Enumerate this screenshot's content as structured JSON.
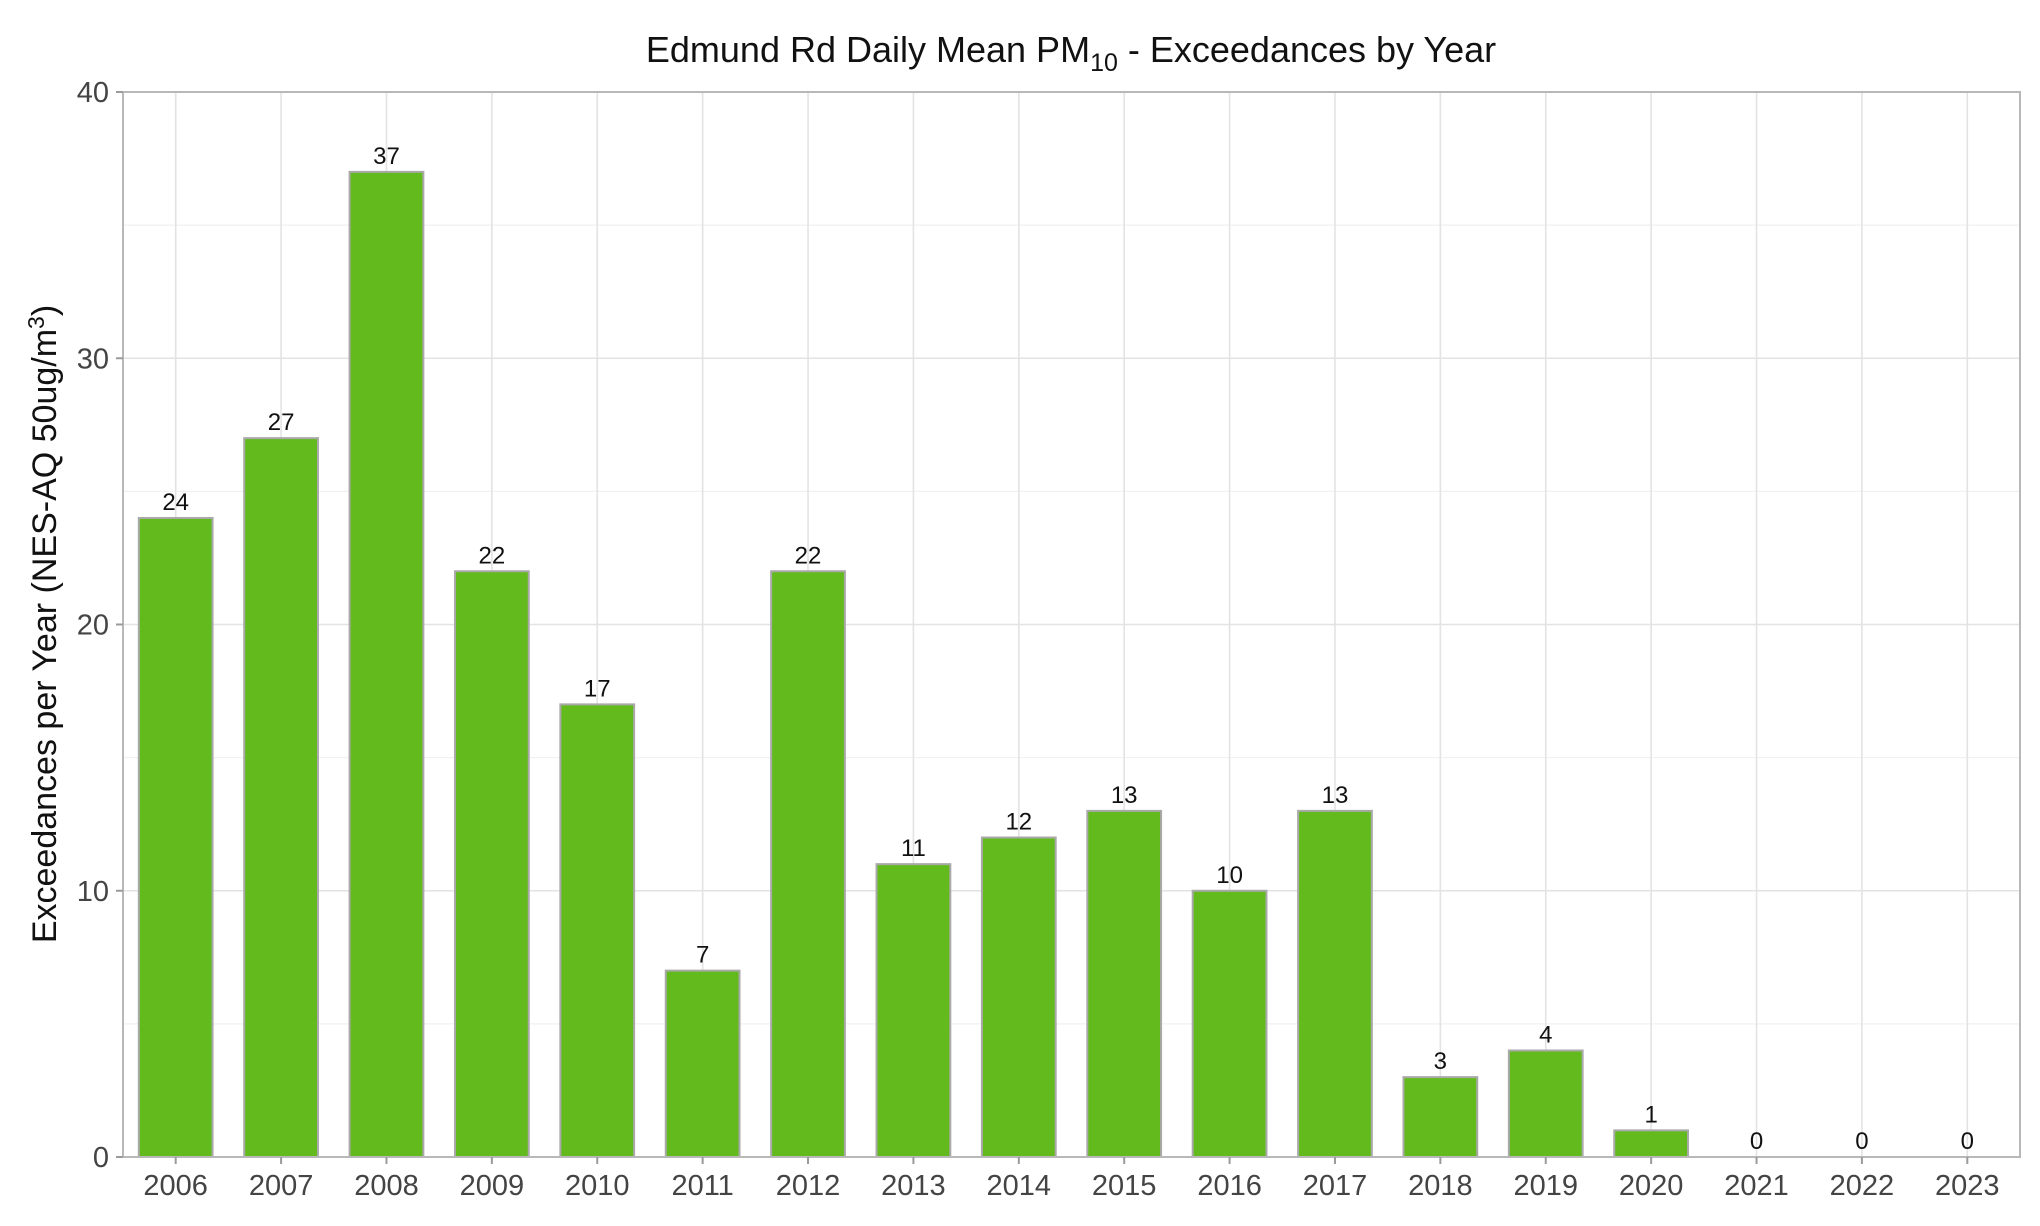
{
  "chart_data": {
    "type": "bar",
    "title": {
      "prefix": "Edmund Rd Daily Mean PM",
      "subscript": "10",
      "suffix": " - Exceedances by Year"
    },
    "xlabel": "",
    "ylabel": {
      "main": "Exceedances per Year (NES-AQ 50ug/m",
      "superscript": "3",
      "end": ")"
    },
    "categories": [
      "2006",
      "2007",
      "2008",
      "2009",
      "2010",
      "2011",
      "2012",
      "2013",
      "2014",
      "2015",
      "2016",
      "2017",
      "2018",
      "2019",
      "2020",
      "2021",
      "2022",
      "2023"
    ],
    "values": [
      24,
      27,
      37,
      22,
      17,
      7,
      22,
      11,
      12,
      13,
      10,
      13,
      3,
      4,
      1,
      0,
      0,
      0
    ],
    "ylim": [
      0,
      40
    ],
    "yticks": [
      0,
      10,
      20,
      30,
      40
    ],
    "grid": true,
    "data_labels": true,
    "bar_color": "#63ba1c",
    "bar_border_color": "#a9a9a9",
    "legend": "none"
  }
}
